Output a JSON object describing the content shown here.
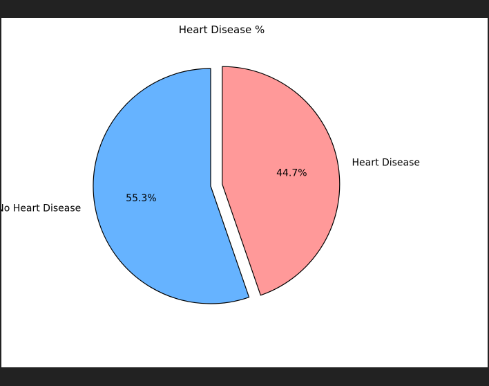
{
  "chart_data": {
    "type": "pie",
    "title": "Heart Disease %",
    "slices": [
      {
        "label": "Heart Disease",
        "value": 44.7,
        "pct_label": "44.7%",
        "color": "#ff9999",
        "explode": true
      },
      {
        "label": "No Heart Disease",
        "value": 55.3,
        "pct_label": "55.3%",
        "color": "#66b3ff",
        "explode": false
      }
    ],
    "start_angle_deg": 90,
    "direction": "clockwise",
    "edge_color": "#000000"
  }
}
